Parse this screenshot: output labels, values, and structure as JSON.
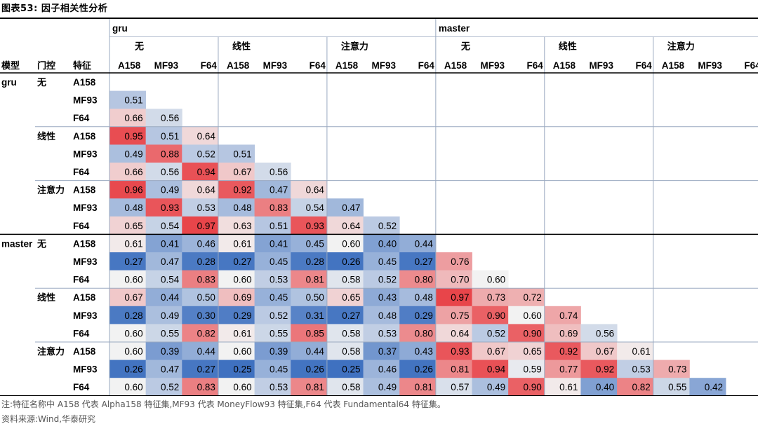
{
  "title": "图表53:  因子相关性分析",
  "note": "注:特征名称中 A158 代表 Alpha158 特征集,MF93 代表 MoneyFlow93 特征集,F64 代表 Fundamental64 特征集。",
  "source": "资料来源:Wind,华泰研究",
  "colors": {
    "high": "#e8454a",
    "low": "#3f71c0",
    "mid": "#f2f2f2",
    "line": "#000000",
    "grid": "#9aa9c0"
  },
  "chart_data": {
    "type": "heatmap",
    "title": "因子相关性分析",
    "header_labels": {
      "model": "模型",
      "gate": "门控",
      "feature": "特征"
    },
    "models": [
      "gru",
      "master"
    ],
    "gates": [
      "无",
      "线性",
      "注意力"
    ],
    "features": [
      "A158",
      "MF93",
      "F64"
    ],
    "color_scale": {
      "min": 0.25,
      "mid": 0.6,
      "max": 0.97
    },
    "matrix": [
      [],
      [
        0.51
      ],
      [
        0.66,
        0.56
      ],
      [
        0.95,
        0.51,
        0.64
      ],
      [
        0.49,
        0.88,
        0.52,
        0.51
      ],
      [
        0.66,
        0.56,
        0.94,
        0.67,
        0.56
      ],
      [
        0.96,
        0.49,
        0.64,
        0.92,
        0.47,
        0.64
      ],
      [
        0.48,
        0.93,
        0.53,
        0.48,
        0.83,
        0.54,
        0.47
      ],
      [
        0.65,
        0.54,
        0.97,
        0.63,
        0.51,
        0.93,
        0.64,
        0.52
      ],
      [
        0.61,
        0.41,
        0.46,
        0.61,
        0.41,
        0.45,
        0.6,
        0.4,
        0.44
      ],
      [
        0.27,
        0.47,
        0.28,
        0.27,
        0.45,
        0.28,
        0.26,
        0.45,
        0.27,
        0.76
      ],
      [
        0.6,
        0.54,
        0.83,
        0.6,
        0.53,
        0.81,
        0.58,
        0.52,
        0.8,
        0.7,
        0.6
      ],
      [
        0.67,
        0.44,
        0.5,
        0.69,
        0.45,
        0.5,
        0.65,
        0.43,
        0.48,
        0.97,
        0.73,
        0.72
      ],
      [
        0.28,
        0.49,
        0.3,
        0.29,
        0.52,
        0.31,
        0.27,
        0.48,
        0.29,
        0.75,
        0.9,
        0.6,
        0.74
      ],
      [
        0.6,
        0.55,
        0.82,
        0.61,
        0.55,
        0.85,
        0.58,
        0.53,
        0.8,
        0.64,
        0.52,
        0.9,
        0.69,
        0.56
      ],
      [
        0.6,
        0.39,
        0.44,
        0.6,
        0.39,
        0.44,
        0.58,
        0.37,
        0.43,
        0.93,
        0.67,
        0.65,
        0.92,
        0.67,
        0.61
      ],
      [
        0.26,
        0.47,
        0.27,
        0.25,
        0.45,
        0.26,
        0.25,
        0.46,
        0.26,
        0.81,
        0.94,
        0.59,
        0.77,
        0.92,
        0.53,
        0.73
      ],
      [
        0.6,
        0.52,
        0.83,
        0.6,
        0.53,
        0.81,
        0.58,
        0.49,
        0.81,
        0.57,
        0.49,
        0.9,
        0.61,
        0.4,
        0.82,
        0.55,
        0.42
      ]
    ]
  }
}
